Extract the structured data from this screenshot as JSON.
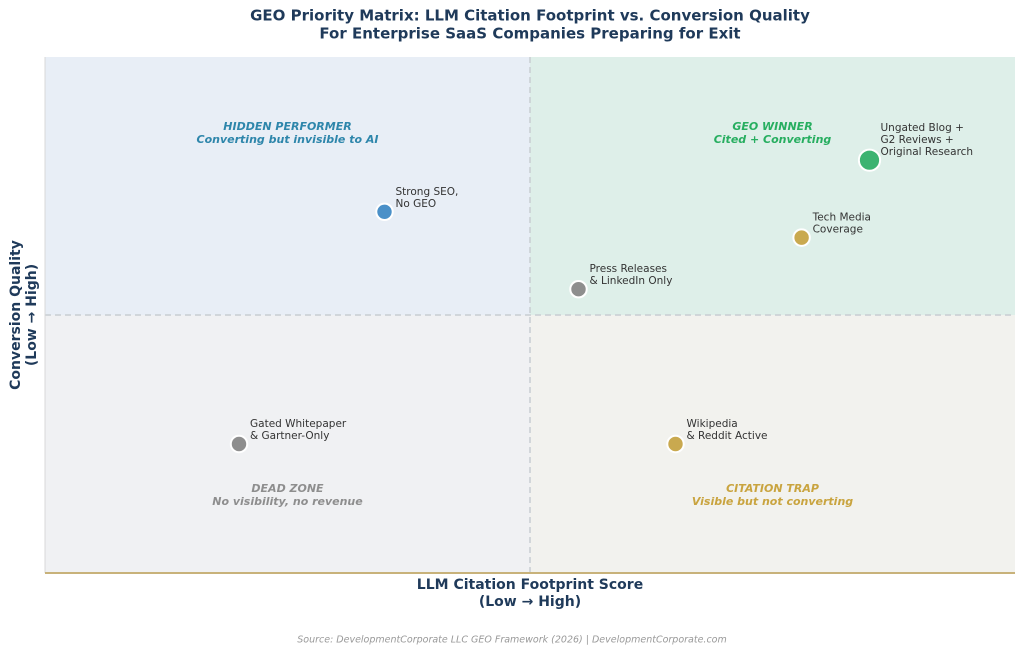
{
  "chart_data": {
    "type": "scatter",
    "title": [
      "GEO Priority Matrix: LLM Citation Footprint vs. Conversion Quality",
      "For Enterprise SaaS Companies Preparing for Exit"
    ],
    "x_label": [
      "LLM Citation Footprint Score",
      "(Low → High)"
    ],
    "y_label": [
      "Conversion Quality",
      "(Low → High)"
    ],
    "source": "Source: DevelopmentCorporate LLC GEO Framework (2026) | DevelopmentCorporate.com",
    "xlim": [
      0,
      10
    ],
    "ylim": [
      0,
      10
    ],
    "x_split": 5,
    "y_split": 5,
    "quadrants": [
      {
        "corner": "top-left",
        "title": "HIDDEN PERFORMER",
        "subtitle": "Converting but invisible to AI",
        "color": "#2e86ab",
        "fill": "#e8eef6"
      },
      {
        "corner": "top-right",
        "title": "GEO WINNER",
        "subtitle": "Cited + Converting",
        "color": "#27ae60",
        "fill": "#deefe9"
      },
      {
        "corner": "bottom-left",
        "title": "DEAD ZONE",
        "subtitle": "No visibility, no revenue",
        "color": "#8e8e8e",
        "fill": "#f0f1f3"
      },
      {
        "corner": "bottom-right",
        "title": "CITATION TRAP",
        "subtitle": "Visible but not converting",
        "color": "#c9a43f",
        "fill": "#f2f2ee"
      }
    ],
    "points": [
      {
        "label": [
          "Strong SEO,",
          "No GEO"
        ],
        "x": 3.5,
        "y": 7.0,
        "size": 120,
        "color": "#4a90c8"
      },
      {
        "label": [
          "Ungated Blog +",
          "G2 Reviews +",
          "Original Research"
        ],
        "x": 8.5,
        "y": 8.0,
        "size": 200,
        "color": "#3cb371"
      },
      {
        "label": [
          "Tech Media",
          "Coverage"
        ],
        "x": 7.8,
        "y": 6.5,
        "size": 120,
        "color": "#c9a94f"
      },
      {
        "label": [
          "Press Releases",
          "& LinkedIn Only"
        ],
        "x": 5.5,
        "y": 5.5,
        "size": 120,
        "color": "#8e8e8e"
      },
      {
        "label": [
          "Gated Whitepaper",
          "& Gartner-Only"
        ],
        "x": 2.0,
        "y": 2.5,
        "size": 120,
        "color": "#8e8e8e"
      },
      {
        "label": [
          "Wikipedia",
          "& Reddit Active"
        ],
        "x": 6.5,
        "y": 2.5,
        "size": 120,
        "color": "#c9a94f"
      }
    ]
  }
}
